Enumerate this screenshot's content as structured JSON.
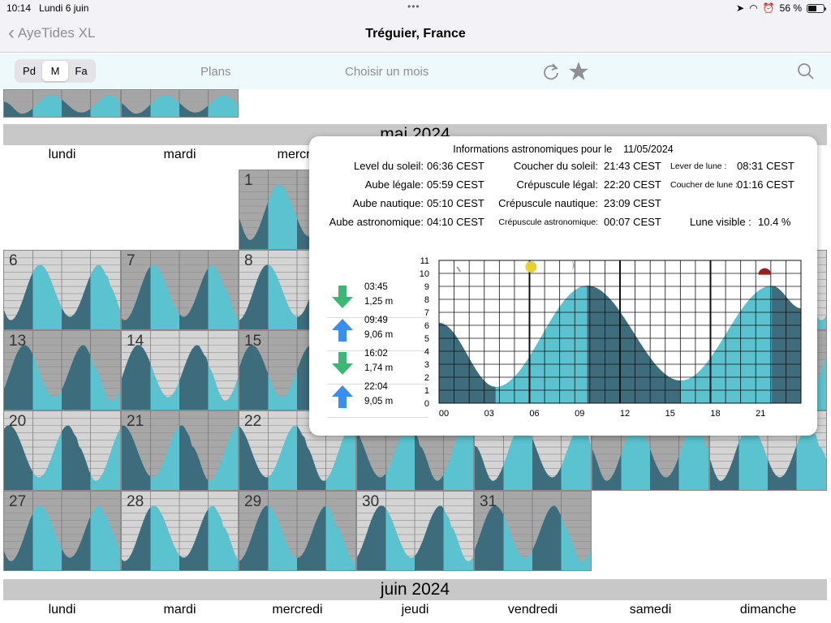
{
  "status": {
    "time": "10:14",
    "date": "Lundi 6 juin",
    "battery": "56 %",
    "battery_level": 0.56
  },
  "nav": {
    "back_label": "AyeTides XL",
    "title": "Tréguier, France"
  },
  "toolbar": {
    "segments": [
      "Pd",
      "M",
      "Fa"
    ],
    "active_segment": "M",
    "plans_label": "Plans",
    "choose_month_label": "Choisir un mois",
    "icons": [
      "refresh-icon",
      "star-icon",
      "search-icon"
    ]
  },
  "calendar": {
    "current_month": "mai 2024",
    "next_month": "juin 2024",
    "weekdays": [
      "lundi",
      "mardi",
      "mercredi",
      "jeudi",
      "vendredi",
      "samedi",
      "dimanche"
    ],
    "weekday_short_3": "mercre",
    "days": [
      "1",
      "6",
      "7",
      "8",
      "13",
      "14",
      "15",
      "20",
      "21",
      "22",
      "27",
      "28",
      "29",
      "30",
      "31"
    ]
  },
  "astro": {
    "title": "Informations astronomiques pour le",
    "date": "11/05/2024",
    "sunrise_label": "Level du soleil:",
    "sunrise": "06:36 CEST",
    "sunset_label": "Coucher du soleil:",
    "sunset": "21:43 CEST",
    "moonrise_label": "Lever de lune :",
    "moonrise": "08:31 CEST",
    "civil_dawn_label": "Aube légale:",
    "civil_dawn": "05:59 CEST",
    "civil_dusk_label": "Crépuscule légal:",
    "civil_dusk": "22:20 CEST",
    "moonset_label": "Coucher de lune :",
    "moonset": "01:16 CEST",
    "nautical_dawn_label": "Aube nautique:",
    "nautical_dawn": "05:10 CEST",
    "nautical_dusk_label": "Crépuscule nautique:",
    "nautical_dusk": "23:09 CEST",
    "astro_dawn_label": "Aube astronomique:",
    "astro_dawn": "04:10 CEST",
    "astro_dusk_label": "Crépuscule astronomique:",
    "astro_dusk": "00:07 CEST",
    "moon_visible_label": "Lune visible :",
    "moon_visible": "10.4 %"
  },
  "tides": [
    {
      "type": "low",
      "time": "03:45",
      "height": "1,25 m"
    },
    {
      "type": "high",
      "time": "09:49",
      "height": "9,06 m"
    },
    {
      "type": "low",
      "time": "16:02",
      "height": "1,74 m"
    },
    {
      "type": "high",
      "time": "22:04",
      "height": "9,05 m"
    }
  ],
  "chart_data": {
    "type": "area",
    "x_tick_labels": [
      "00",
      "03",
      "06",
      "09",
      "12",
      "15",
      "18",
      "21"
    ],
    "y_tick_labels": [
      "0",
      "1",
      "2",
      "3",
      "4",
      "5",
      "6",
      "7",
      "8",
      "9",
      "10",
      "11"
    ],
    "xlim": [
      0,
      24
    ],
    "ylim": [
      0,
      11
    ],
    "x": [
      0,
      3.75,
      9.82,
      16.03,
      22.07,
      24
    ],
    "y": [
      6.2,
      1.25,
      9.06,
      1.74,
      9.05,
      7.3
    ],
    "fill_light": "#5bc2d0",
    "fill_dark": "#3d6c7c",
    "grid": true
  },
  "colors": {
    "water_light": "#5bc2d0",
    "water_dark": "#3d6c7c",
    "arrow_up": "#3a8ef0",
    "arrow_down": "#3fb576",
    "sun": "#e5cf3a",
    "moon_marker": "#9b1f1f"
  }
}
